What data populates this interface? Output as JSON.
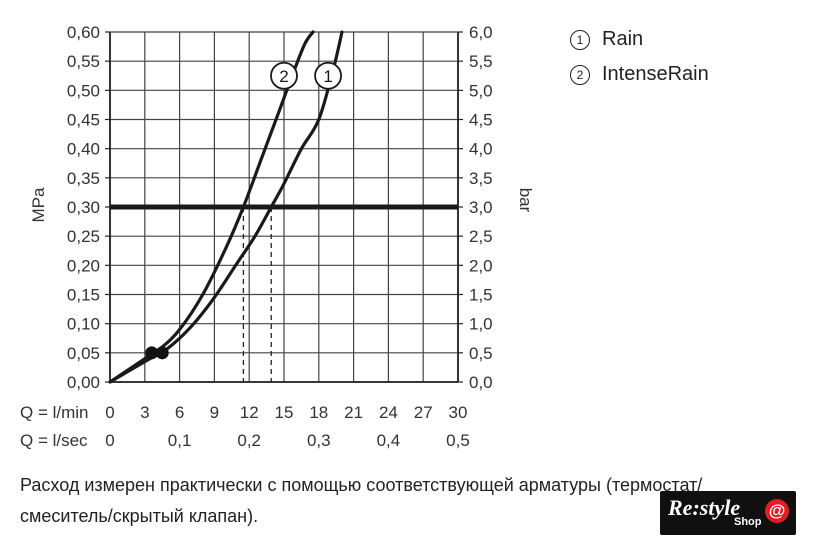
{
  "legend": [
    {
      "num": "1",
      "label": "Rain"
    },
    {
      "num": "2",
      "label": "IntenseRain"
    }
  ],
  "caption": {
    "line1": "Расход измерен практически с помощью соответствующей арматуры (термостат/",
    "line2": "смеситель/скрытый клапан)."
  },
  "badge": {
    "brand": "Re:style",
    "sub": "Shop",
    "at": "@"
  },
  "chart_data": {
    "type": "line",
    "ylabel_left": "MPa",
    "ylabel_right": "bar",
    "xlabel_lmin": "Q = l/min",
    "xlabel_lsec": "Q = l/sec",
    "x_ticks_lmin": [
      "0",
      "3",
      "6",
      "9",
      "12",
      "15",
      "18",
      "21",
      "24",
      "27",
      "30"
    ],
    "x_ticks_lsec": [
      "0",
      "0,1",
      "0,2",
      "0,3",
      "0,4",
      "0,5"
    ],
    "y_ticks_left": [
      "0,00",
      "0,05",
      "0,10",
      "0,15",
      "0,20",
      "0,25",
      "0,30",
      "0,35",
      "0,40",
      "0,45",
      "0,50",
      "0,55",
      "0,60"
    ],
    "y_ticks_right": [
      "0,0",
      "0,5",
      "1,0",
      "1,5",
      "2,0",
      "2,5",
      "3,0",
      "3,5",
      "4,0",
      "4,5",
      "5,0",
      "5,5",
      "6,0"
    ],
    "xlim": [
      0,
      30
    ],
    "ylim": [
      0,
      0.6
    ],
    "grid": true,
    "reference_line": {
      "y": 0.3
    },
    "series": [
      {
        "name": "1",
        "x": [
          0,
          3,
          5,
          7,
          9,
          11,
          12.5,
          13.9,
          15,
          16.5,
          18,
          19.3,
          20
        ],
        "y": [
          0,
          0.035,
          0.058,
          0.095,
          0.145,
          0.205,
          0.25,
          0.3,
          0.34,
          0.4,
          0.45,
          0.54,
          0.6
        ]
      },
      {
        "name": "2",
        "x": [
          0,
          3,
          4.5,
          6,
          8,
          10,
          11.5,
          13,
          14.5,
          15.8,
          16.8,
          17.5
        ],
        "y": [
          0,
          0.04,
          0.06,
          0.09,
          0.15,
          0.23,
          0.3,
          0.38,
          0.46,
          0.53,
          0.58,
          0.6
        ]
      }
    ],
    "markers": [
      {
        "series": "1",
        "x": 4.5,
        "y": 0.05
      },
      {
        "series": "2",
        "x": 3.6,
        "y": 0.05
      }
    ],
    "drop_lines": [
      {
        "x": 11.5,
        "y": 0.3
      },
      {
        "x": 13.9,
        "y": 0.3
      }
    ],
    "curve_labels": [
      {
        "num": "2",
        "x": 15,
        "y": 0.525
      },
      {
        "num": "1",
        "x": 18.8,
        "y": 0.525
      }
    ]
  }
}
